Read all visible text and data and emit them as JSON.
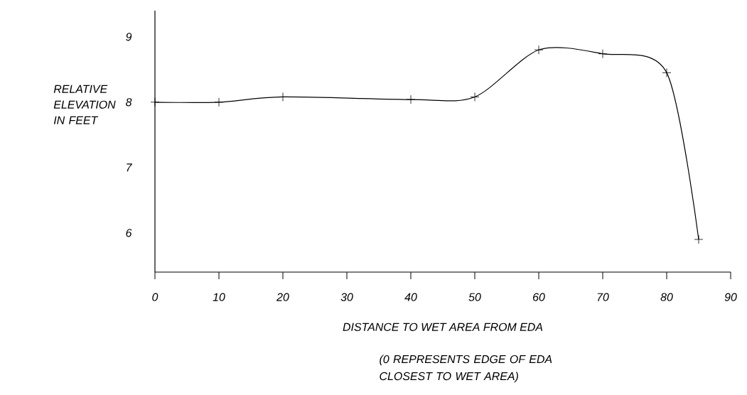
{
  "chart_data": {
    "type": "line",
    "xlabel": "DISTANCE TO WET AREA FROM EDA",
    "ylabel": "RELATIVE ELEVATION IN FEET",
    "annotations": [
      "(0 REPRESENTS EDGE OF EDA CLOSEST TO WET AREA)"
    ],
    "x": [
      0,
      10,
      20,
      40,
      50,
      60,
      70,
      80,
      85
    ],
    "series": [
      {
        "color": "#000000",
        "values": [
          8.0,
          8.0,
          8.08,
          8.04,
          8.08,
          8.8,
          8.74,
          8.45,
          5.9
        ]
      }
    ],
    "xlim": [
      0,
      90
    ],
    "ylim": [
      5.4,
      9.4
    ],
    "xticks": [
      0,
      10,
      20,
      30,
      40,
      50,
      60,
      70,
      80,
      90
    ],
    "yticks": [
      6,
      7,
      8,
      9
    ],
    "marker": "cross",
    "line_style": "solid"
  }
}
